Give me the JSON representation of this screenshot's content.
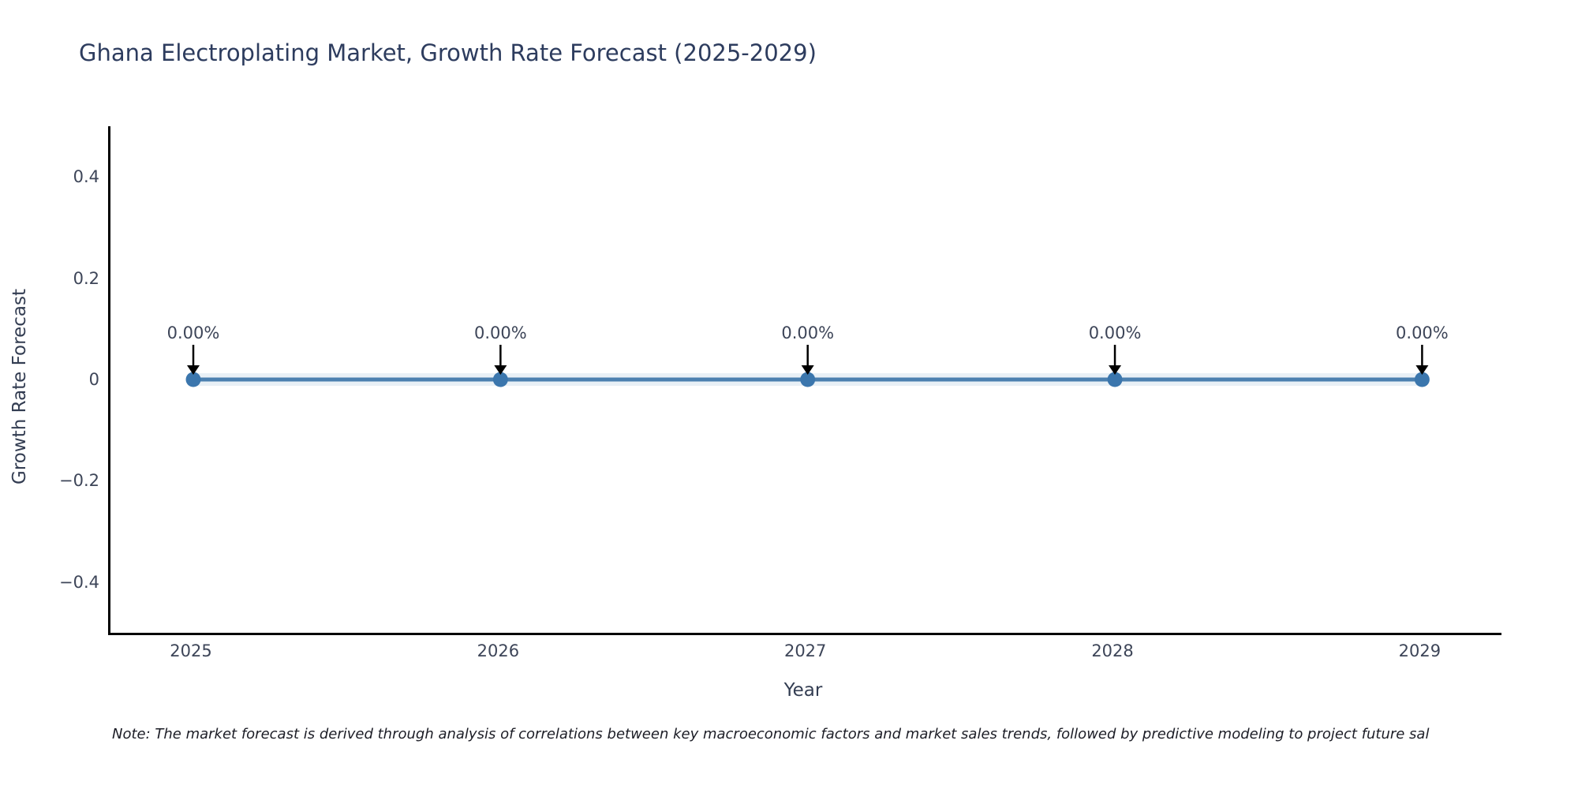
{
  "chart": {
    "note": "Note: The market forecast is derived through analysis of correlations between key macroeconomic factors and market sales trends, followed by predictive modeling to project future sal"
  },
  "chart_data": {
    "type": "line",
    "title": "Ghana Electroplating Market, Growth Rate Forecast (2025-2029)",
    "xlabel": "Year",
    "ylabel": "Growth Rate Forecast",
    "categories": [
      "2025",
      "2026",
      "2027",
      "2028",
      "2029"
    ],
    "series": [
      {
        "name": "Growth Rate Forecast",
        "values": [
          0,
          0,
          0,
          0,
          0
        ]
      }
    ],
    "point_labels": [
      "0.00%",
      "0.00%",
      "0.00%",
      "0.00%",
      "0.00%"
    ],
    "y_tick_labels": [
      "0.4",
      "0.2",
      "0",
      "−0.2",
      "−0.4"
    ],
    "y_tick_values": [
      0.4,
      0.2,
      0,
      -0.2,
      -0.4
    ],
    "ylim": [
      -0.5,
      0.5
    ],
    "grid": false,
    "legend": false,
    "annotations": "black downward arrow from each 0.00% label to its data point",
    "colors": {
      "line": "#4c80b0",
      "line_halo": "rgba(70,130,180,0.12)",
      "marker": "#3b76ad",
      "arrow": "#000000",
      "title": "#2d3c5e",
      "tick": "#3d4558",
      "axis": "#000000",
      "note": "#1c1d26"
    }
  }
}
